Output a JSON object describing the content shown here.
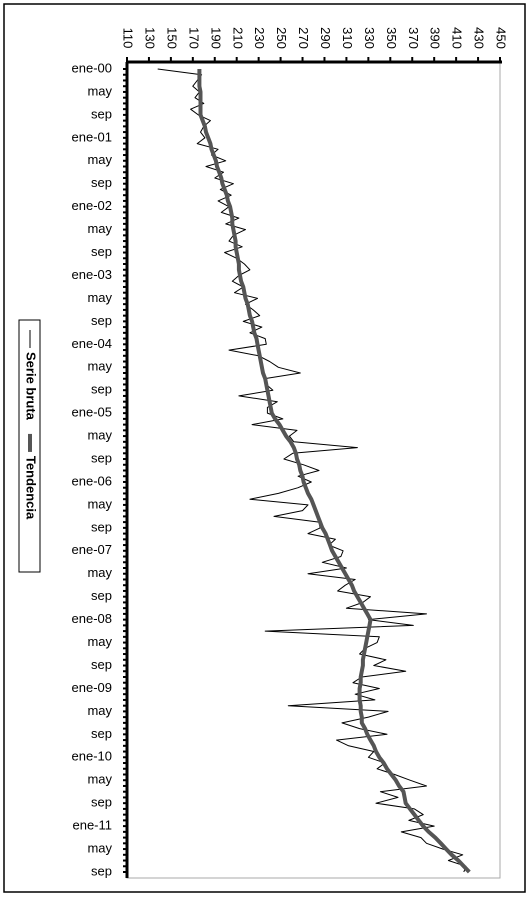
{
  "chart_data": {
    "type": "line",
    "orientation": "vertical-categories",
    "categories": [
      "ene-00",
      null,
      null,
      null,
      "may",
      null,
      null,
      null,
      "sep",
      null,
      null,
      null,
      "ene-01",
      null,
      null,
      null,
      "may",
      null,
      null,
      null,
      "sep",
      null,
      null,
      null,
      "ene-02",
      null,
      null,
      null,
      "may",
      null,
      null,
      null,
      "sep",
      null,
      null,
      null,
      "ene-03",
      null,
      null,
      null,
      "may",
      null,
      null,
      null,
      "sep",
      null,
      null,
      null,
      "ene-04",
      null,
      null,
      null,
      "may",
      null,
      null,
      null,
      "sep",
      null,
      null,
      null,
      "ene-05",
      null,
      null,
      null,
      "may",
      null,
      null,
      null,
      "sep",
      null,
      null,
      null,
      "ene-06",
      null,
      null,
      null,
      "may",
      null,
      null,
      null,
      "sep",
      null,
      null,
      null,
      "ene-07",
      null,
      null,
      null,
      "may",
      null,
      null,
      null,
      "sep",
      null,
      null,
      null,
      "ene-08",
      null,
      null,
      null,
      "may",
      null,
      null,
      null,
      "sep",
      null,
      null,
      null,
      "ene-09",
      null,
      null,
      null,
      "may",
      null,
      null,
      null,
      "sep",
      null,
      null,
      null,
      "ene-10",
      null,
      null,
      null,
      "may",
      null,
      null,
      null,
      "sep",
      null,
      null,
      null,
      "ene-11",
      null,
      null,
      null,
      "may",
      null,
      null,
      null,
      "sep"
    ],
    "series": [
      {
        "name": "Serie bruta",
        "color": "#000000",
        "width": 1,
        "values": [
          138,
          178,
          174,
          170,
          176,
          172,
          180,
          168,
          175,
          186,
          180,
          177,
          181,
          174,
          193,
          187,
          200,
          182,
          198,
          190,
          207,
          195,
          205,
          193,
          203,
          196,
          212,
          200,
          218,
          207,
          203,
          215,
          199,
          210,
          217,
          222,
          212,
          206,
          216,
          208,
          229,
          218,
          225,
          231,
          216,
          233,
          222,
          236,
          237,
          203,
          230,
          240,
          248,
          268,
          235,
          237,
          243,
          212,
          247,
          238,
          238,
          252,
          224,
          265,
          258,
          262,
          320,
          261,
          253,
          271,
          285,
          266,
          278,
          266,
          248,
          222,
          275,
          270,
          244,
          285,
          286,
          275,
          300,
          294,
          307,
          305,
          288,
          310,
          275,
          318,
          309,
          302,
          332,
          325,
          310,
          383,
          330,
          371,
          236,
          340,
          338,
          327,
          322,
          346,
          335,
          364,
          324,
          316,
          340,
          318,
          336,
          257,
          348,
          330,
          306,
          322,
          347,
          301,
          312,
          335,
          330,
          345,
          338,
          354,
          368,
          383,
          341,
          357,
          337,
          372,
          380,
          367,
          390,
          360,
          378,
          383,
          398,
          416,
          403,
          419,
          417
        ]
      },
      {
        "name": "Tendencia",
        "color": "#555555",
        "width": 4,
        "values": [
          176,
          176,
          176,
          176,
          177,
          177,
          177,
          177,
          177,
          179,
          181,
          182,
          184,
          186,
          187,
          189,
          191,
          192,
          194,
          196,
          197,
          199,
          201,
          202,
          204,
          205,
          206,
          206,
          207,
          208,
          209,
          209,
          210,
          211,
          212,
          212,
          213,
          214,
          216,
          217,
          218,
          220,
          221,
          222,
          224,
          225,
          226,
          228,
          229,
          230,
          231,
          232,
          233,
          234,
          236,
          237,
          238,
          239,
          240,
          241,
          242,
          245,
          249,
          252,
          255,
          259,
          262,
          264,
          265,
          267,
          268,
          270,
          271,
          273,
          275,
          278,
          280,
          282,
          284,
          286,
          288,
          291,
          293,
          295,
          297,
          300,
          303,
          306,
          309,
          312,
          315,
          317,
          320,
          323,
          326,
          329,
          332,
          331,
          330,
          329,
          328,
          327,
          326,
          325,
          325,
          324,
          323,
          323,
          322,
          322,
          322,
          323,
          323,
          324,
          324,
          327,
          329,
          332,
          335,
          337,
          340,
          344,
          347,
          351,
          355,
          358,
          362,
          363,
          364,
          368,
          372,
          376,
          380,
          385,
          391,
          396,
          401,
          406,
          412,
          417,
          422
        ]
      }
    ],
    "xlim": [
      110,
      450
    ],
    "xticks": [
      110,
      130,
      150,
      170,
      190,
      210,
      230,
      250,
      270,
      290,
      310,
      330,
      350,
      370,
      390,
      410,
      430,
      450
    ],
    "legend": "left"
  }
}
